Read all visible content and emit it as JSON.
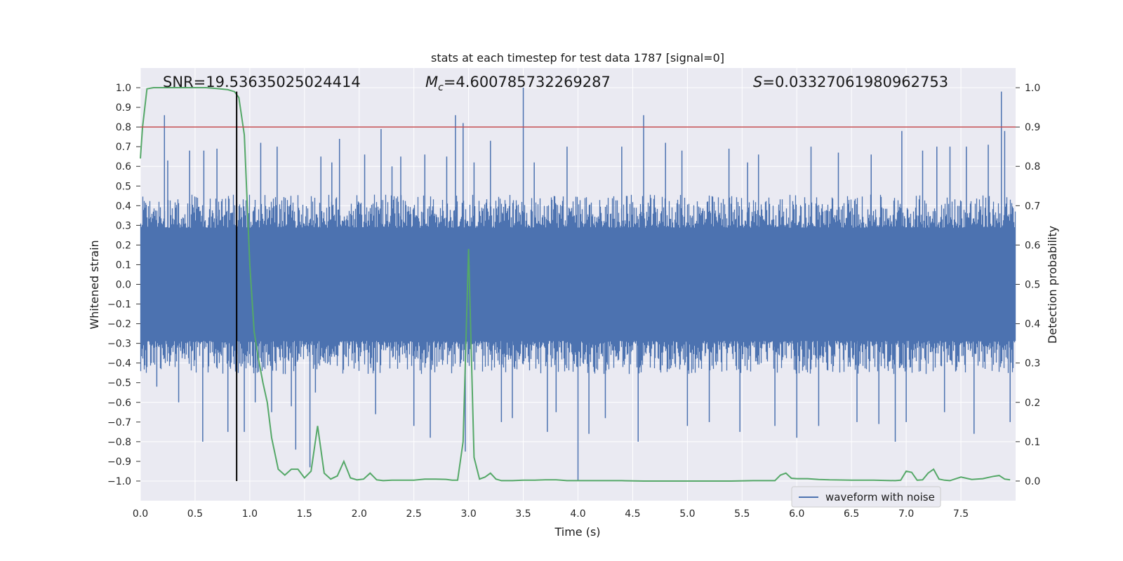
{
  "chart_data": {
    "type": "line",
    "title": "stats at each timestep for test data 1787 [signal=0]",
    "xlabel": "Time (s)",
    "ylabel": "Whitened strain",
    "y2label": "Detection probability",
    "xlim": [
      0.0,
      8.0
    ],
    "ylim": [
      -1.1,
      1.1
    ],
    "y2lim": [
      -0.05,
      1.05
    ],
    "xticks": [
      0.0,
      0.5,
      1.0,
      1.5,
      2.0,
      2.5,
      3.0,
      3.5,
      4.0,
      4.5,
      5.0,
      5.5,
      6.0,
      6.5,
      7.0,
      7.5
    ],
    "xtick_labels": [
      "0.0",
      "0.5",
      "1.0",
      "1.5",
      "2.0",
      "2.5",
      "3.0",
      "3.5",
      "4.0",
      "4.5",
      "5.0",
      "5.5",
      "6.0",
      "6.5",
      "7.0",
      "7.5"
    ],
    "yticks": [
      1.0,
      0.9,
      0.8,
      0.7,
      0.6,
      0.5,
      0.4,
      0.3,
      0.2,
      0.1,
      0.0,
      -0.1,
      -0.2,
      -0.3,
      -0.4,
      -0.5,
      -0.6,
      -0.7,
      -0.8,
      -0.9,
      -1.0
    ],
    "ytick_labels": [
      "1.0",
      "0.9",
      "0.8",
      "0.7",
      "0.6",
      "0.5",
      "0.4",
      "0.3",
      "0.2",
      "0.1",
      "0.0",
      "−0.1",
      "−0.2",
      "−0.3",
      "−0.4",
      "−0.5",
      "−0.6",
      "−0.7",
      "−0.8",
      "−0.9",
      "−1.0"
    ],
    "y2ticks": [
      1.0,
      0.9,
      0.8,
      0.7,
      0.6,
      0.5,
      0.4,
      0.3,
      0.2,
      0.1,
      0.0
    ],
    "y2tick_labels": [
      "1.0",
      "0.9",
      "0.8",
      "0.7",
      "0.6",
      "0.5",
      "0.4",
      "0.3",
      "0.2",
      "0.1",
      "0.0"
    ],
    "grid": true,
    "legend": {
      "placement": "lower-right",
      "entries": [
        "waveform with noise"
      ]
    },
    "annotations": {
      "snr": "SNR=19.53635025024414",
      "mc_symbol": "M",
      "mc_sub": "c",
      "mc_value": "=4.600785732269287",
      "s_symbol": "S",
      "s_value": "=0.03327061980962753"
    },
    "threshold_line": {
      "y2": 0.9,
      "color": "#c44e52"
    },
    "vertical_marker": {
      "x": 0.88,
      "y_from": -1.0,
      "y_to": 0.98,
      "color": "#000000"
    },
    "colors": {
      "background": "#eaeaf2",
      "grid": "#ffffff",
      "waveform": "#4c72b0",
      "probability": "#55a868"
    },
    "series": [
      {
        "name": "waveform with noise",
        "axis": "left",
        "envelope": {
          "typical_upper": 0.4,
          "typical_lower": -0.4
        },
        "spikes": [
          [
            0.22,
            0.86
          ],
          [
            0.25,
            0.63
          ],
          [
            0.45,
            0.68
          ],
          [
            0.58,
            0.68
          ],
          [
            0.7,
            0.69
          ],
          [
            0.88,
            0.69
          ],
          [
            0.57,
            -0.8
          ],
          [
            0.8,
            -0.75
          ],
          [
            0.95,
            -0.75
          ],
          [
            1.05,
            -0.6
          ],
          [
            1.2,
            -0.65
          ],
          [
            1.38,
            -0.62
          ],
          [
            1.42,
            -0.84
          ],
          [
            1.55,
            -0.93
          ],
          [
            1.65,
            0.65
          ],
          [
            1.6,
            -0.55
          ],
          [
            1.82,
            0.74
          ],
          [
            2.05,
            0.66
          ],
          [
            2.2,
            0.79
          ],
          [
            2.38,
            0.65
          ],
          [
            2.5,
            -0.72
          ],
          [
            2.65,
            -0.78
          ],
          [
            2.8,
            0.65
          ],
          [
            2.88,
            0.86
          ],
          [
            2.95,
            0.82
          ],
          [
            2.97,
            -0.85
          ],
          [
            3.2,
            0.73
          ],
          [
            3.3,
            -0.7
          ],
          [
            3.5,
            1.0
          ],
          [
            3.72,
            -0.75
          ],
          [
            3.9,
            0.7
          ],
          [
            4.0,
            -1.0
          ],
          [
            4.1,
            -0.76
          ],
          [
            4.4,
            0.7
          ],
          [
            4.55,
            -0.8
          ],
          [
            4.6,
            0.86
          ],
          [
            4.8,
            0.72
          ],
          [
            5.0,
            -0.72
          ],
          [
            5.2,
            -0.7
          ],
          [
            5.38,
            0.69
          ],
          [
            5.48,
            -0.75
          ],
          [
            5.65,
            0.66
          ],
          [
            5.8,
            -0.72
          ],
          [
            6.0,
            -0.78
          ],
          [
            6.13,
            0.7
          ],
          [
            6.2,
            -0.72
          ],
          [
            6.38,
            0.67
          ],
          [
            6.55,
            -0.7
          ],
          [
            6.75,
            -0.71
          ],
          [
            6.96,
            0.78
          ],
          [
            7.0,
            -0.7
          ],
          [
            7.15,
            0.68
          ],
          [
            7.28,
            0.7
          ],
          [
            7.4,
            0.7
          ],
          [
            7.55,
            0.7
          ],
          [
            7.62,
            -0.76
          ],
          [
            7.75,
            0.71
          ],
          [
            7.87,
            0.98
          ],
          [
            7.9,
            0.78
          ],
          [
            7.95,
            -0.7
          ],
          [
            1.1,
            0.72
          ],
          [
            1.25,
            0.7
          ],
          [
            1.75,
            0.62
          ],
          [
            2.3,
            0.6
          ],
          [
            2.6,
            0.66
          ],
          [
            3.05,
            0.62
          ],
          [
            3.6,
            0.62
          ],
          [
            3.8,
            -0.65
          ],
          [
            4.25,
            -0.68
          ],
          [
            4.95,
            0.68
          ],
          [
            5.55,
            0.62
          ],
          [
            6.9,
            -0.8
          ],
          [
            6.68,
            0.66
          ],
          [
            7.35,
            -0.65
          ],
          [
            0.35,
            -0.6
          ],
          [
            0.15,
            -0.52
          ],
          [
            2.15,
            -0.66
          ],
          [
            3.4,
            -0.68
          ]
        ]
      },
      {
        "name": "",
        "axis": "right",
        "x": [
          0.0,
          0.02,
          0.06,
          0.12,
          0.2,
          0.3,
          0.4,
          0.5,
          0.6,
          0.7,
          0.8,
          0.86,
          0.9,
          0.95,
          1.0,
          1.04,
          1.08,
          1.12,
          1.16,
          1.2,
          1.26,
          1.32,
          1.38,
          1.44,
          1.5,
          1.56,
          1.62,
          1.68,
          1.74,
          1.8,
          1.86,
          1.92,
          1.98,
          2.04,
          2.1,
          2.16,
          2.22,
          2.3,
          2.4,
          2.5,
          2.6,
          2.7,
          2.8,
          2.85,
          2.9,
          2.95,
          3.0,
          3.05,
          3.1,
          3.15,
          3.2,
          3.25,
          3.3,
          3.4,
          3.5,
          3.6,
          3.7,
          3.8,
          3.9,
          4.0,
          4.2,
          4.4,
          4.6,
          4.8,
          5.0,
          5.2,
          5.4,
          5.6,
          5.8,
          5.85,
          5.9,
          5.95,
          6.0,
          6.1,
          6.2,
          6.3,
          6.5,
          6.7,
          6.9,
          6.95,
          7.0,
          7.05,
          7.1,
          7.15,
          7.2,
          7.25,
          7.3,
          7.35,
          7.4,
          7.5,
          7.6,
          7.7,
          7.8,
          7.85,
          7.9,
          7.95
        ],
        "values": [
          0.82,
          0.9,
          0.997,
          1.0,
          1.0,
          1.0,
          1.0,
          1.0,
          1.0,
          0.998,
          0.995,
          0.99,
          0.975,
          0.88,
          0.55,
          0.38,
          0.31,
          0.25,
          0.2,
          0.11,
          0.03,
          0.015,
          0.03,
          0.03,
          0.008,
          0.025,
          0.14,
          0.02,
          0.005,
          0.013,
          0.05,
          0.008,
          0.003,
          0.005,
          0.02,
          0.003,
          0.001,
          0.002,
          0.002,
          0.002,
          0.005,
          0.005,
          0.004,
          0.002,
          0.002,
          0.1,
          0.59,
          0.06,
          0.005,
          0.01,
          0.02,
          0.005,
          0.001,
          0.001,
          0.002,
          0.002,
          0.003,
          0.003,
          0.001,
          0.001,
          0.001,
          0.001,
          0.0,
          0.0,
          0.0,
          0.0,
          0.0,
          0.001,
          0.001,
          0.015,
          0.02,
          0.007,
          0.006,
          0.006,
          0.004,
          0.003,
          0.002,
          0.002,
          0.001,
          0.002,
          0.025,
          0.022,
          0.002,
          0.003,
          0.02,
          0.03,
          0.005,
          0.002,
          0.001,
          0.01,
          0.004,
          0.006,
          0.012,
          0.014,
          0.005,
          0.003
        ]
      }
    ]
  }
}
